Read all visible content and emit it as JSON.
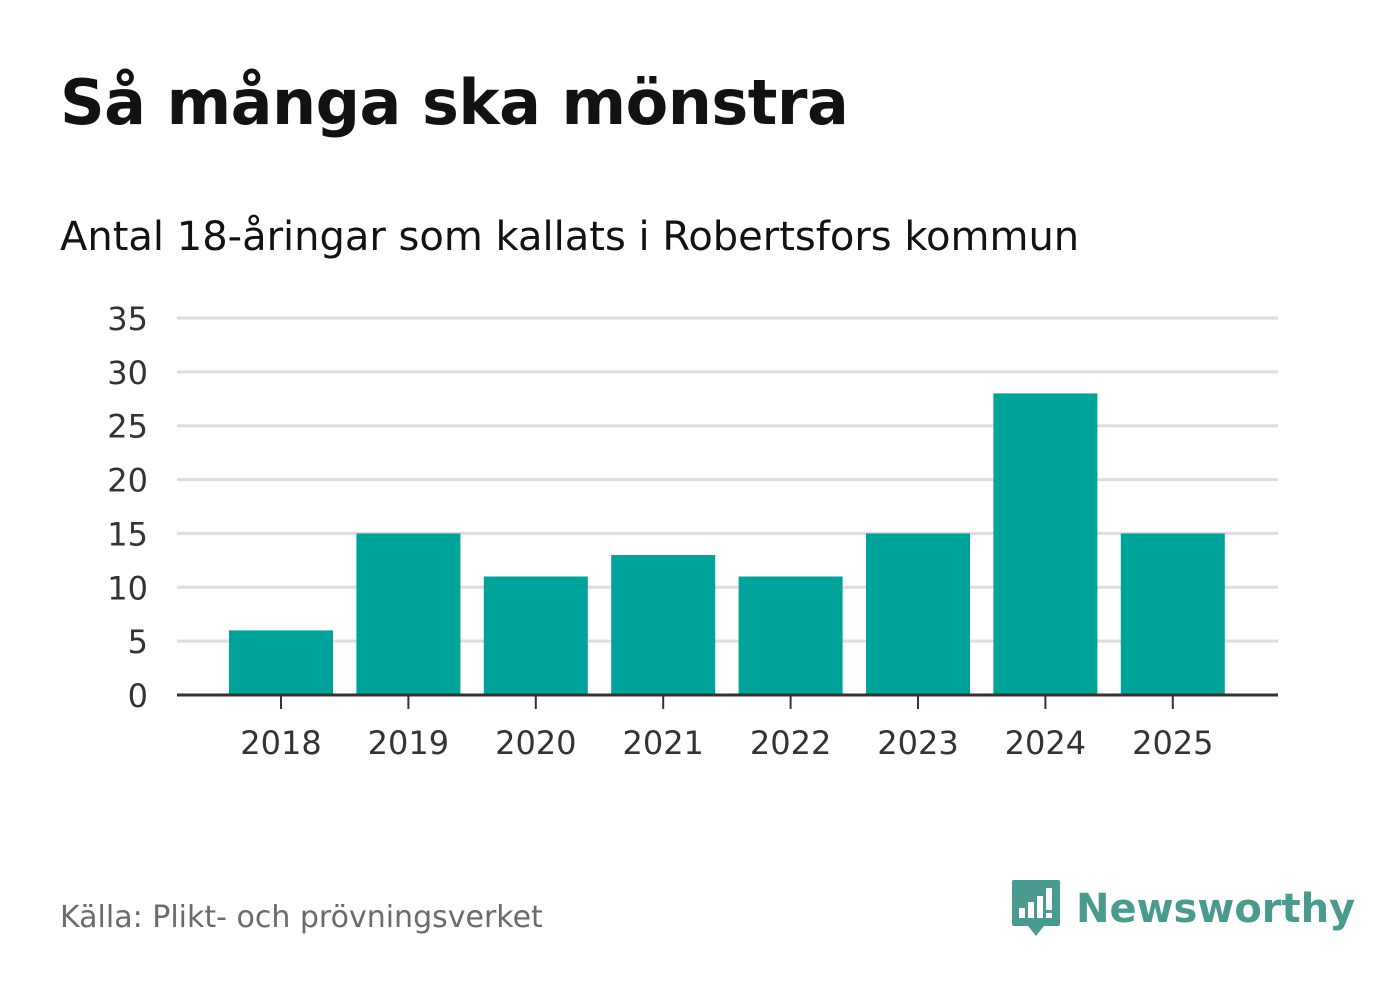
{
  "header": {
    "title": "Så många ska mönstra",
    "subtitle": "Antal 18-åringar som kallats i Robertsfors kommun"
  },
  "footer": {
    "source": "Källa: Plikt- och prövningsverket",
    "brand": "Newsworthy",
    "brand_icon": "bar-chart-speech-bubble-icon"
  },
  "colors": {
    "bar": "#00a39a",
    "grid": "#dddddd",
    "axis": "#333333",
    "brand": "#4a9a90"
  },
  "chart_data": {
    "type": "bar",
    "title": "Så många ska mönstra",
    "subtitle": "Antal 18-åringar som kallats i Robertsfors kommun",
    "categories": [
      "2018",
      "2019",
      "2020",
      "2021",
      "2022",
      "2023",
      "2024",
      "2025"
    ],
    "values": [
      6,
      15,
      11,
      13,
      11,
      15,
      28,
      15
    ],
    "xlabel": "",
    "ylabel": "",
    "ylim": [
      0,
      35
    ],
    "yticks": [
      0,
      5,
      10,
      15,
      20,
      25,
      30,
      35
    ],
    "grid": true,
    "legend": "none"
  }
}
